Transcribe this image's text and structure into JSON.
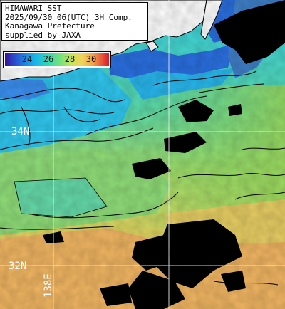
{
  "title": {
    "line1": "HIMAWARI SST",
    "line2": "2025/09/30 06(UTC) 3H Comp.",
    "line3": "Kanagawa Prefecture",
    "line4": "supplied by JAXA"
  },
  "colorbar": {
    "ticks": [
      "24",
      "26",
      "28",
      "30"
    ],
    "colors": [
      "#3b0f8c",
      "#2c3fc8",
      "#1f7fe0",
      "#19b9e8",
      "#35d7b0",
      "#7be27a",
      "#c8e45a",
      "#f2d35a",
      "#f0a64a",
      "#e8563a",
      "#d8182a"
    ]
  },
  "graticule": {
    "lat_top": "34N",
    "lat_bottom": "32N",
    "lon": "138E"
  },
  "map_colors": {
    "land": "#ffffff",
    "cloud": "#000000",
    "contour": "#000000",
    "grid": "#ffffff"
  }
}
